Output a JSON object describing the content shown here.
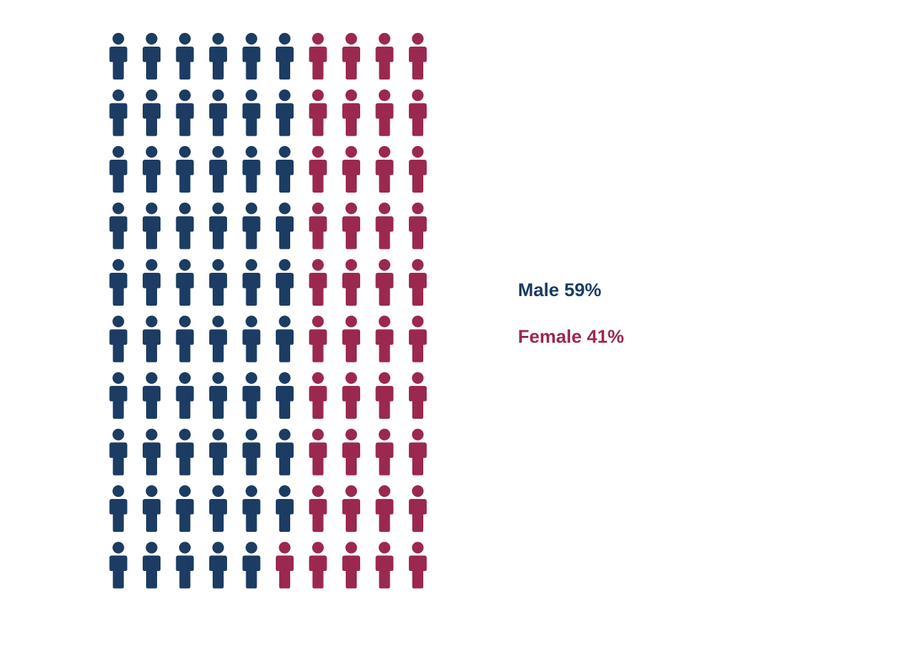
{
  "chart_data": {
    "type": "pictogram",
    "grid": {
      "rows": 10,
      "columns": 10,
      "total": 100
    },
    "series": [
      {
        "name": "Male",
        "value": 59,
        "unit": "%",
        "color": "#1c3c63"
      },
      {
        "name": "Female",
        "value": 41,
        "unit": "%",
        "color": "#9b2850"
      }
    ],
    "legend": {
      "position": "right",
      "items": [
        {
          "text": "Male 59%",
          "color": "#1c3c63"
        },
        {
          "text": "Female 41%",
          "color": "#9b2850"
        }
      ]
    },
    "icon": "person-icon",
    "fill_order": "column-major"
  }
}
